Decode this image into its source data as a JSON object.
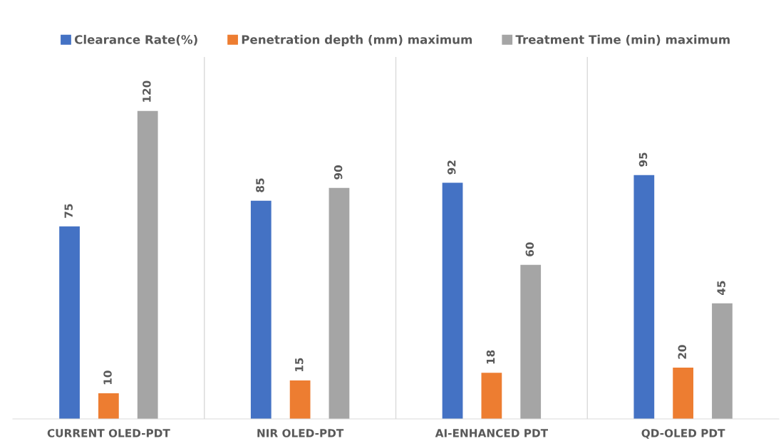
{
  "chart_data": {
    "type": "bar",
    "data_labels": true,
    "grid": "x",
    "legend": "top",
    "categories": [
      "CURRENT OLED-PDT",
      "NIR OLED-PDT",
      "AI-ENHANCED PDT",
      "QD-OLED PDT"
    ],
    "series": [
      {
        "name": "Clearance Rate(%)",
        "color": "#4472c4",
        "values": [
          75,
          85,
          92,
          95
        ]
      },
      {
        "name": "Penetration depth (mm) maximum",
        "color": "#ed7d31",
        "values": [
          10,
          15,
          18,
          20
        ]
      },
      {
        "name": "Treatment Time (min) maximum",
        "color": "#a5a5a5",
        "values": [
          120,
          90,
          60,
          45
        ]
      }
    ]
  }
}
